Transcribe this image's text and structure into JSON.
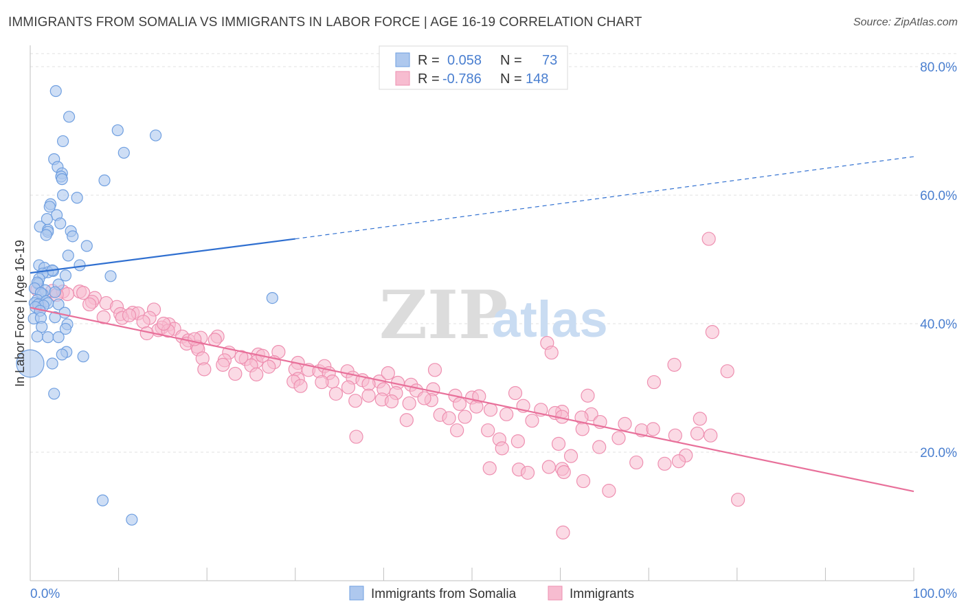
{
  "title": "IMMIGRANTS FROM SOMALIA VS IMMIGRANTS IN LABOR FORCE | AGE 16-19 CORRELATION CHART",
  "source": "Source: ZipAtlas.com",
  "watermark": {
    "zip": "ZIP",
    "atlas": "atlas"
  },
  "colors": {
    "blue_fill": "#aec8ee",
    "blue_stroke": "#6f9fe0",
    "blue_line": "#2f6fd0",
    "pink_fill": "#f7bcd0",
    "pink_stroke": "#ee8fb0",
    "pink_line": "#e8709a",
    "tick_text": "#4a7fd0",
    "grid": "#e0e0e0"
  },
  "legend_top": {
    "rows": [
      {
        "r_label": "R =",
        "r_value": "0.058",
        "n_label": "N =",
        "n_value": "73",
        "color": "blue"
      },
      {
        "r_label": "R =",
        "r_value": "-0.786",
        "n_label": "N =",
        "n_value": "148",
        "color": "pink"
      }
    ]
  },
  "legend_bottom": [
    {
      "label": "Immigrants from Somalia",
      "color": "blue"
    },
    {
      "label": "Immigrants",
      "color": "pink"
    }
  ],
  "chart_data": {
    "type": "scatter",
    "title": "IMMIGRANTS FROM SOMALIA VS IMMIGRANTS IN LABOR FORCE | AGE 16-19 CORRELATION CHART",
    "xlabel": "",
    "ylabel": "In Labor Force | Age 16-19",
    "xlim": [
      0,
      100
    ],
    "ylim": [
      0,
      85
    ],
    "x_tick_labels": [
      {
        "value": 0,
        "label": "0.0%"
      },
      {
        "value": 100,
        "label": "100.0%"
      }
    ],
    "y_tick_labels": [
      {
        "value": 20,
        "label": "20.0%"
      },
      {
        "value": 40,
        "label": "40.0%"
      },
      {
        "value": 60,
        "label": "60.0%"
      },
      {
        "value": 80,
        "label": "80.0%"
      }
    ],
    "grid": true,
    "series": [
      {
        "name": "Immigrants from Somalia",
        "color": "blue",
        "trend": {
          "x0": 0,
          "y0": 47.9,
          "x1": 30,
          "y1": 53.2,
          "dashed_to_x": 100,
          "dashed_to_y": 66.0
        },
        "points": [
          [
            2.9,
            76.2
          ],
          [
            4.4,
            72.2
          ],
          [
            9.9,
            70.1
          ],
          [
            14.2,
            69.3
          ],
          [
            3.7,
            68.4
          ],
          [
            10.6,
            66.6
          ],
          [
            2.7,
            65.6
          ],
          [
            3.1,
            64.4
          ],
          [
            3.6,
            63.4
          ],
          [
            3.5,
            62.9
          ],
          [
            8.4,
            62.3
          ],
          [
            3.6,
            62.5
          ],
          [
            3.7,
            60.0
          ],
          [
            5.3,
            59.6
          ],
          [
            2.3,
            58.6
          ],
          [
            2.2,
            58.2
          ],
          [
            3.0,
            56.9
          ],
          [
            1.9,
            56.3
          ],
          [
            3.4,
            55.6
          ],
          [
            1.1,
            55.1
          ],
          [
            2.0,
            54.6
          ],
          [
            2.0,
            54.3
          ],
          [
            1.8,
            53.8
          ],
          [
            4.6,
            54.4
          ],
          [
            4.8,
            53.6
          ],
          [
            6.4,
            52.1
          ],
          [
            4.3,
            50.6
          ],
          [
            5.6,
            49.1
          ],
          [
            1.0,
            49.1
          ],
          [
            1.6,
            48.7
          ],
          [
            2.6,
            48.2
          ],
          [
            2.0,
            48.0
          ],
          [
            2.5,
            48.3
          ],
          [
            1.4,
            47.8
          ],
          [
            9.1,
            47.4
          ],
          [
            4.0,
            47.5
          ],
          [
            1.0,
            47.0
          ],
          [
            0.9,
            46.2
          ],
          [
            0.8,
            46.4
          ],
          [
            3.2,
            46.1
          ],
          [
            0.5,
            45.5
          ],
          [
            1.7,
            45.2
          ],
          [
            2.8,
            44.9
          ],
          [
            1.4,
            44.6
          ],
          [
            1.2,
            44.8
          ],
          [
            27.4,
            44.0
          ],
          [
            0.8,
            43.7
          ],
          [
            0.5,
            43.2
          ],
          [
            1.8,
            43.5
          ],
          [
            2.0,
            43.2
          ],
          [
            0.9,
            43.0
          ],
          [
            1.5,
            42.8
          ],
          [
            3.2,
            43.0
          ],
          [
            0.6,
            42.6
          ],
          [
            1.1,
            42.0
          ],
          [
            3.9,
            41.7
          ],
          [
            0.4,
            40.8
          ],
          [
            1.2,
            40.9
          ],
          [
            2.8,
            41.0
          ],
          [
            4.2,
            39.9
          ],
          [
            4.0,
            39.2
          ],
          [
            1.3,
            39.5
          ],
          [
            0.8,
            38.0
          ],
          [
            2.0,
            37.9
          ],
          [
            3.2,
            37.9
          ],
          [
            4.1,
            35.6
          ],
          [
            3.6,
            35.2
          ],
          [
            6.0,
            34.9
          ],
          [
            0.0,
            33.8
          ],
          [
            2.5,
            33.8
          ],
          [
            2.7,
            29.1
          ],
          [
            8.2,
            12.5
          ],
          [
            11.5,
            9.5
          ]
        ],
        "large_point": [
          0.0,
          33.8
        ]
      },
      {
        "name": "Immigrants",
        "color": "pink",
        "trend": {
          "x0": 0,
          "y0": 42.5,
          "x1": 100,
          "y1": 13.9
        },
        "points": [
          [
            76.8,
            53.2
          ],
          [
            0.8,
            45.3
          ],
          [
            2.5,
            45.1
          ],
          [
            3.7,
            45.0
          ],
          [
            5.6,
            45.0
          ],
          [
            6.0,
            44.8
          ],
          [
            4.2,
            44.6
          ],
          [
            3.0,
            44.5
          ],
          [
            7.3,
            44.0
          ],
          [
            7.0,
            43.4
          ],
          [
            8.6,
            43.2
          ],
          [
            6.7,
            43.0
          ],
          [
            1.0,
            42.9
          ],
          [
            9.8,
            42.6
          ],
          [
            14.0,
            42.2
          ],
          [
            11.6,
            41.7
          ],
          [
            10.2,
            41.5
          ],
          [
            12.2,
            41.6
          ],
          [
            8.3,
            41.0
          ],
          [
            13.5,
            40.9
          ],
          [
            12.8,
            40.3
          ],
          [
            15.7,
            39.9
          ],
          [
            14.9,
            39.4
          ],
          [
            16.3,
            39.2
          ],
          [
            14.5,
            39.0
          ],
          [
            15.6,
            38.9
          ],
          [
            13.2,
            38.5
          ],
          [
            17.2,
            38.0
          ],
          [
            19.3,
            37.8
          ],
          [
            21.2,
            38.0
          ],
          [
            17.9,
            37.4
          ],
          [
            20.9,
            37.5
          ],
          [
            17.7,
            36.9
          ],
          [
            18.9,
            36.4
          ],
          [
            19.0,
            36.0
          ],
          [
            77.2,
            38.7
          ],
          [
            58.5,
            37.0
          ],
          [
            22.5,
            35.5
          ],
          [
            25.8,
            35.2
          ],
          [
            28.1,
            35.6
          ],
          [
            59.0,
            35.5
          ],
          [
            19.5,
            34.6
          ],
          [
            24.4,
            34.5
          ],
          [
            22.0,
            34.3
          ],
          [
            25.6,
            34.1
          ],
          [
            27.6,
            34.0
          ],
          [
            30.3,
            33.9
          ],
          [
            25.0,
            33.5
          ],
          [
            21.8,
            33.6
          ],
          [
            27.0,
            33.3
          ],
          [
            30.0,
            32.9
          ],
          [
            72.9,
            33.6
          ],
          [
            78.9,
            32.6
          ],
          [
            19.7,
            32.9
          ],
          [
            31.5,
            32.8
          ],
          [
            32.7,
            32.6
          ],
          [
            25.6,
            32.1
          ],
          [
            23.2,
            32.2
          ],
          [
            33.3,
            33.4
          ],
          [
            35.9,
            32.6
          ],
          [
            45.8,
            32.8
          ],
          [
            33.8,
            32.3
          ],
          [
            36.5,
            31.6
          ],
          [
            30.3,
            31.4
          ],
          [
            29.8,
            31.0
          ],
          [
            37.6,
            31.2
          ],
          [
            34.2,
            31.0
          ],
          [
            39.5,
            31.0
          ],
          [
            41.6,
            30.8
          ],
          [
            38.3,
            30.6
          ],
          [
            43.1,
            30.5
          ],
          [
            30.6,
            30.3
          ],
          [
            36.0,
            30.1
          ],
          [
            70.6,
            30.9
          ],
          [
            40.0,
            29.8
          ],
          [
            43.7,
            29.6
          ],
          [
            45.6,
            29.8
          ],
          [
            34.6,
            29.1
          ],
          [
            41.4,
            29.2
          ],
          [
            38.3,
            28.8
          ],
          [
            48.1,
            28.8
          ],
          [
            54.9,
            29.2
          ],
          [
            63.1,
            28.8
          ],
          [
            36.8,
            28.0
          ],
          [
            39.8,
            28.2
          ],
          [
            40.9,
            27.9
          ],
          [
            45.4,
            28.1
          ],
          [
            50.0,
            28.5
          ],
          [
            48.6,
            27.5
          ],
          [
            42.9,
            27.6
          ],
          [
            50.5,
            27.1
          ],
          [
            55.8,
            27.2
          ],
          [
            52.1,
            26.6
          ],
          [
            57.8,
            26.6
          ],
          [
            60.2,
            26.3
          ],
          [
            59.4,
            26.1
          ],
          [
            63.5,
            25.9
          ],
          [
            53.9,
            25.9
          ],
          [
            46.4,
            25.8
          ],
          [
            49.2,
            25.5
          ],
          [
            60.2,
            25.5
          ],
          [
            47.4,
            25.3
          ],
          [
            75.8,
            25.2
          ],
          [
            42.6,
            25.0
          ],
          [
            56.8,
            24.9
          ],
          [
            62.4,
            25.4
          ],
          [
            64.5,
            24.7
          ],
          [
            67.3,
            24.4
          ],
          [
            62.5,
            23.6
          ],
          [
            51.8,
            23.4
          ],
          [
            48.3,
            23.4
          ],
          [
            69.2,
            23.4
          ],
          [
            70.5,
            23.6
          ],
          [
            75.5,
            22.9
          ],
          [
            77.0,
            22.6
          ],
          [
            73.0,
            22.6
          ],
          [
            36.9,
            22.4
          ],
          [
            66.6,
            22.2
          ],
          [
            53.1,
            22.0
          ],
          [
            55.2,
            21.7
          ],
          [
            59.8,
            21.3
          ],
          [
            64.4,
            20.8
          ],
          [
            53.4,
            20.6
          ],
          [
            61.2,
            19.4
          ],
          [
            74.2,
            19.5
          ],
          [
            68.6,
            18.4
          ],
          [
            73.4,
            18.6
          ],
          [
            71.8,
            18.2
          ],
          [
            58.7,
            17.7
          ],
          [
            60.2,
            17.4
          ],
          [
            52.0,
            17.5
          ],
          [
            55.3,
            17.3
          ],
          [
            60.4,
            16.9
          ],
          [
            56.3,
            16.8
          ],
          [
            62.6,
            15.5
          ],
          [
            65.5,
            14.0
          ],
          [
            80.1,
            12.6
          ],
          [
            60.3,
            7.5
          ],
          [
            50.8,
            28.7
          ],
          [
            44.6,
            28.4
          ],
          [
            40.5,
            32.3
          ],
          [
            33.0,
            30.9
          ],
          [
            26.3,
            35.0
          ],
          [
            23.9,
            34.8
          ],
          [
            10.4,
            40.9
          ],
          [
            11.2,
            41.3
          ],
          [
            15.1,
            40.0
          ],
          [
            18.6,
            37.6
          ]
        ]
      }
    ]
  }
}
